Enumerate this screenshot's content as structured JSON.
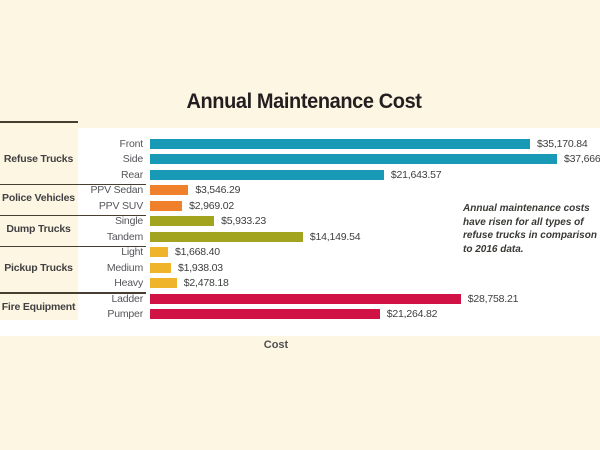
{
  "title": "Annual Maintenance Cost",
  "x_axis_label": "Cost",
  "annotation": {
    "lines": [
      "Annual maintenance costs",
      "have risen for all types of",
      "refuse trucks in comparison",
      "to 2016 data."
    ],
    "text": "Annual maintenance costs have risen for all types of refuse trucks in comparison to 2016 data."
  },
  "colors": {
    "background": "#fdf6e3",
    "plot_background": "#ffffff",
    "separator": "#453e31",
    "refuse_trucks": "#189ab6",
    "police_vehicles": "#f0802c",
    "dump_trucks": "#a2a420",
    "pickup_trucks": "#f0b42a",
    "fire_equipment": "#d01245"
  },
  "chart_data": {
    "type": "bar",
    "orientation": "horizontal",
    "title": "Annual Maintenance Cost",
    "xlabel": "Cost",
    "ylabel": "",
    "grid": false,
    "legend": false,
    "axis_max": 41650,
    "groups": [
      {
        "label": "Refuse Trucks",
        "color": "#189ab6",
        "rows": [
          {
            "label": "Front",
            "value": 35170.84,
            "value_label": "$35,170.84"
          },
          {
            "label": "Side",
            "value": 37666.0,
            "value_label": "$37,666."
          },
          {
            "label": "Rear",
            "value": 21643.57,
            "value_label": "$21,643.57"
          }
        ]
      },
      {
        "label": "Police Vehicles",
        "color": "#f0802c",
        "rows": [
          {
            "label": "PPV Sedan",
            "value": 3546.29,
            "value_label": "$3,546.29"
          },
          {
            "label": "PPV SUV",
            "value": 2969.02,
            "value_label": "$2,969.02"
          }
        ]
      },
      {
        "label": "Dump Trucks",
        "color": "#a2a420",
        "rows": [
          {
            "label": "Single",
            "value": 5933.23,
            "value_label": "$5,933.23"
          },
          {
            "label": "Tandem",
            "value": 14149.54,
            "value_label": "$14,149.54"
          }
        ]
      },
      {
        "label": "Pickup Trucks",
        "color": "#f0b42a",
        "rows": [
          {
            "label": "Light",
            "value": 1668.4,
            "value_label": "$1,668.40"
          },
          {
            "label": "Medium",
            "value": 1938.03,
            "value_label": "$1,938.03"
          },
          {
            "label": "Heavy",
            "value": 2478.18,
            "value_label": "$2,478.18"
          }
        ]
      },
      {
        "label": "Fire Equipment",
        "color": "#d01245",
        "rows": [
          {
            "label": "Ladder",
            "value": 28758.21,
            "value_label": "$28,758.21"
          },
          {
            "label": "Pumper",
            "value": 21264.82,
            "value_label": "$21,264.82"
          }
        ]
      }
    ]
  }
}
